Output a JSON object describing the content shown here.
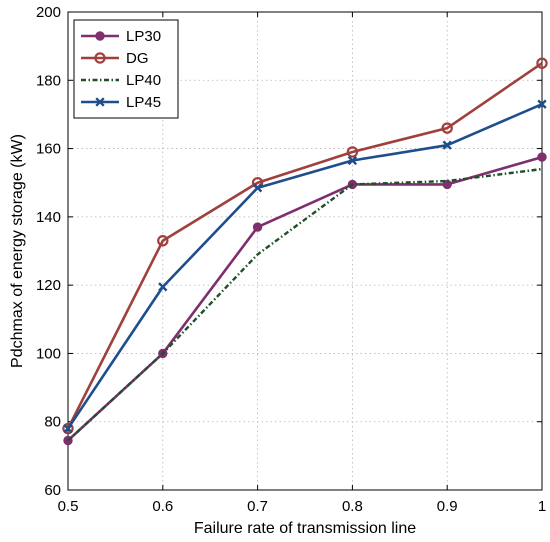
{
  "chart_data": {
    "type": "line",
    "title": "",
    "xlabel": "Failure rate of transmission line",
    "ylabel": "Pdchmax of energy storage (kW)",
    "xlim": [
      0.5,
      1
    ],
    "ylim": [
      60,
      200
    ],
    "xticks": [
      "0.5",
      "0.6",
      "0.7",
      "0.8",
      "0.9",
      "1"
    ],
    "yticks": [
      "60",
      "80",
      "100",
      "120",
      "140",
      "160",
      "180",
      "200"
    ],
    "grid": true,
    "legend_position": "top-left",
    "x": [
      0.5,
      0.6,
      0.7,
      0.8,
      0.9,
      1.0
    ],
    "series": [
      {
        "name": "LP30",
        "values": [
          74.5,
          100,
          137,
          149.5,
          149.5,
          157.5
        ],
        "color": "#7e2f6e",
        "marker": "filled-circle",
        "dash": "solid"
      },
      {
        "name": "DG",
        "values": [
          78,
          133,
          150,
          159,
          166,
          185
        ],
        "color": "#a0403c",
        "marker": "open-circle",
        "dash": "solid"
      },
      {
        "name": "LP40",
        "values": [
          74.5,
          100,
          129,
          149.5,
          150.5,
          154
        ],
        "color": "#1f4f2a",
        "marker": "none",
        "dash": "dashdot"
      },
      {
        "name": "LP45",
        "values": [
          78,
          119.5,
          148.5,
          156.5,
          161,
          173
        ],
        "color": "#1f4e8c",
        "marker": "x",
        "dash": "solid"
      }
    ]
  }
}
